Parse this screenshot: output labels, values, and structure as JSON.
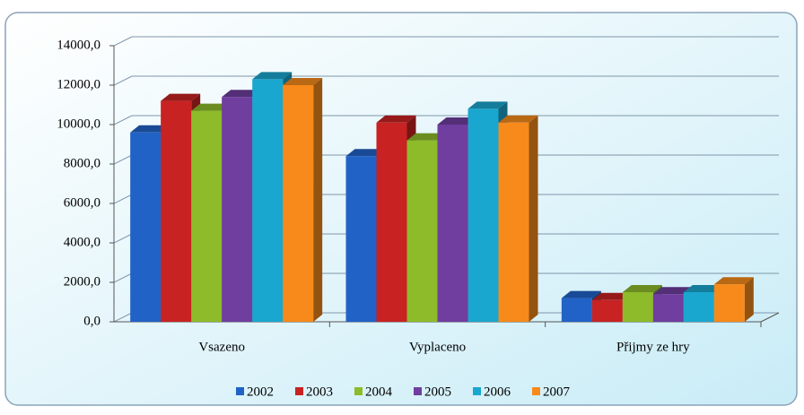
{
  "chart_data": {
    "type": "bar3d",
    "categories": [
      "Vsazeno",
      "Vyplaceno",
      "Přijmy ze hry"
    ],
    "series": [
      {
        "name": "2002",
        "color": "#2162c6",
        "values": [
          9600,
          8400,
          1200
        ]
      },
      {
        "name": "2003",
        "color": "#c82222",
        "values": [
          11200,
          10100,
          1100
        ]
      },
      {
        "name": "2004",
        "color": "#8dbb2a",
        "values": [
          10700,
          9200,
          1500
        ]
      },
      {
        "name": "2005",
        "color": "#6f3e9e",
        "values": [
          11400,
          10000,
          1400
        ]
      },
      {
        "name": "2006",
        "color": "#1aa7cf",
        "values": [
          12300,
          10800,
          1500
        ]
      },
      {
        "name": "2007",
        "color": "#f78a1a",
        "values": [
          12000,
          10100,
          1900
        ]
      }
    ],
    "ylim": [
      0,
      14000
    ],
    "yticks": [
      {
        "value": 0,
        "label": "0,0"
      },
      {
        "value": 2000,
        "label": "2000,0"
      },
      {
        "value": 4000,
        "label": "4000,0"
      },
      {
        "value": 6000,
        "label": "6000,0"
      },
      {
        "value": 8000,
        "label": "8000,0"
      },
      {
        "value": 10000,
        "label": "10000,0"
      },
      {
        "value": 12000,
        "label": "12000,0"
      },
      {
        "value": 14000,
        "label": "14000,0"
      }
    ],
    "grid": true,
    "legend": "bottom"
  }
}
